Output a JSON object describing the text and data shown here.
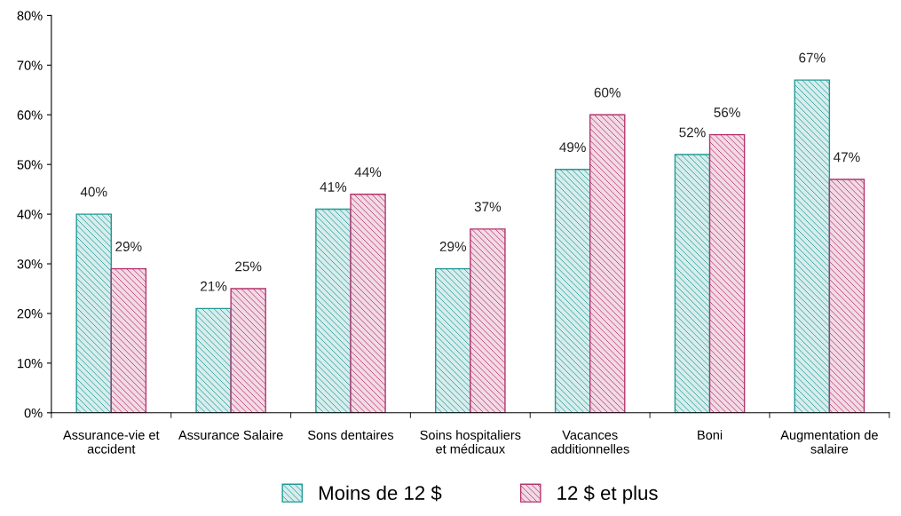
{
  "chart_data": {
    "type": "bar",
    "categories": [
      "Assurance-vie et\naccident",
      "Assurance Salaire",
      "Sons dentaires",
      "Soins hospitaliers\net médicaux",
      "Vacances\nadditionnelles",
      "Boni",
      "Augmentation de\nsalaire"
    ],
    "series": [
      {
        "name": "Moins de 12 $",
        "color": "#1f9a96",
        "values": [
          40,
          21,
          41,
          29,
          49,
          52,
          67
        ],
        "value_labels": [
          "40%",
          "21%",
          "41%",
          "29%",
          "49%",
          "52%",
          "67%"
        ]
      },
      {
        "name": "12 $ et plus",
        "color": "#b5346e",
        "values": [
          29,
          25,
          44,
          37,
          60,
          56,
          47
        ],
        "value_labels": [
          "29%",
          "25%",
          "44%",
          "37%",
          "60%",
          "56%",
          "47%"
        ]
      }
    ],
    "ylim": [
      0,
      80
    ],
    "yticks": [
      {
        "value": 0,
        "label": "0%"
      },
      {
        "value": 10,
        "label": "10%"
      },
      {
        "value": 20,
        "label": "20%"
      },
      {
        "value": 30,
        "label": "30%"
      },
      {
        "value": 40,
        "label": "40%"
      },
      {
        "value": 50,
        "label": "50%"
      },
      {
        "value": 60,
        "label": "60%"
      },
      {
        "value": 70,
        "label": "70%"
      },
      {
        "value": 80,
        "label": "80%"
      }
    ],
    "grid": false,
    "legend": "bottom"
  }
}
